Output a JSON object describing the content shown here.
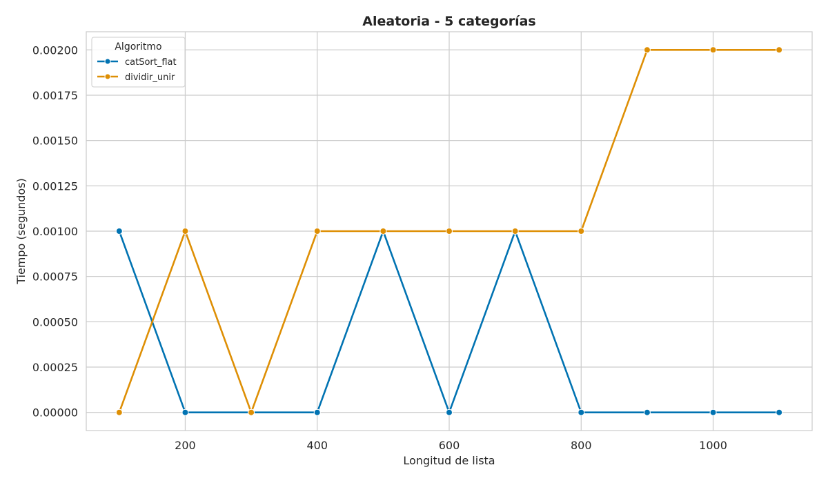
{
  "chart_data": {
    "type": "line",
    "title": "Aleatoria - 5 categorías",
    "xlabel": "Longitud de lista",
    "ylabel": "Tiempo (segundos)",
    "x": [
      100,
      200,
      300,
      400,
      500,
      600,
      700,
      800,
      900,
      1000,
      1100
    ],
    "xlim": [
      50,
      1150
    ],
    "ylim": [
      -0.0001,
      0.0021
    ],
    "x_ticks": [
      200,
      400,
      600,
      800,
      1000
    ],
    "x_tick_labels": [
      "200",
      "400",
      "600",
      "800",
      "1000"
    ],
    "y_ticks": [
      0,
      0.00025,
      0.0005,
      0.00075,
      0.001,
      0.00125,
      0.0015,
      0.00175,
      0.002
    ],
    "y_tick_labels": [
      "0.00000",
      "0.00025",
      "0.00050",
      "0.00075",
      "0.00100",
      "0.00125",
      "0.00150",
      "0.00175",
      "0.00200"
    ],
    "grid": true,
    "legend": {
      "title": "Algoritmo",
      "placement": "top-left"
    },
    "series": [
      {
        "name": "catSort_flat",
        "color": "#0173b2",
        "values": [
          0.001,
          0,
          0,
          0,
          0.001,
          0,
          0.001,
          0,
          0,
          0,
          0
        ]
      },
      {
        "name": "dividir_unir",
        "color": "#de8f05",
        "values": [
          0,
          0.001,
          0,
          0.001,
          0.001,
          0.001,
          0.001,
          0.001,
          0.002,
          0.002,
          0.002
        ]
      }
    ]
  }
}
